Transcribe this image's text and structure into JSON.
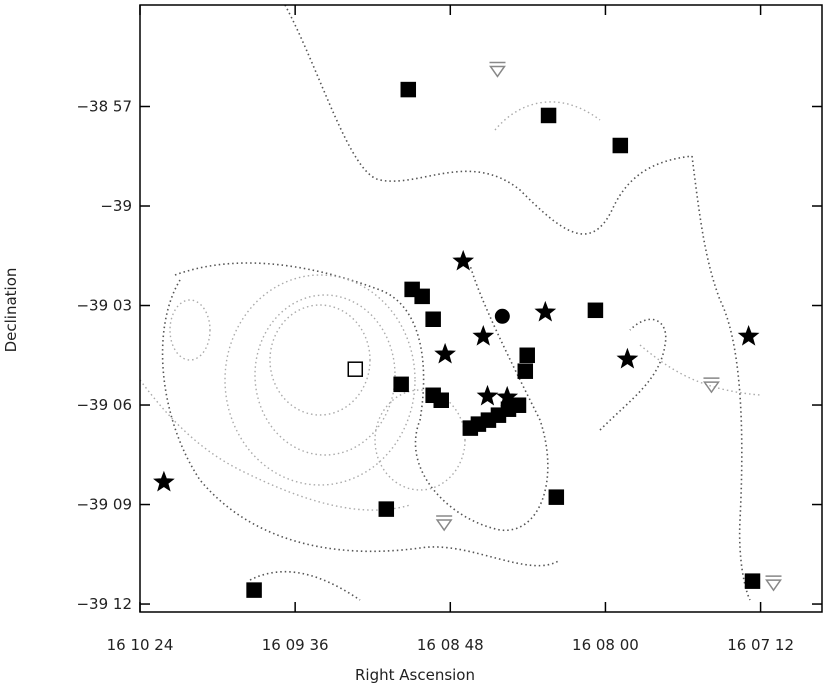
{
  "chart_data": {
    "type": "scatter",
    "x_label": "Right Ascension",
    "y_label": "Declination",
    "xlim": [
      624,
      413
    ],
    "ylim": [
      -39.204,
      -38.899
    ],
    "xticks": [
      {
        "value": 624,
        "label": "16 10 24"
      },
      {
        "value": 576,
        "label": "16 09 36"
      },
      {
        "value": 528,
        "label": "16 08 48"
      },
      {
        "value": 480,
        "label": "16 08 00"
      },
      {
        "value": 432,
        "label": "16 07 12"
      }
    ],
    "yticks": [
      {
        "value": -38.95,
        "label": "−38 57"
      },
      {
        "value": -39.0,
        "label": "−39"
      },
      {
        "value": -39.05,
        "label": "−39 03"
      },
      {
        "value": -39.1,
        "label": "−39 06"
      },
      {
        "value": -39.15,
        "label": "−39 09"
      },
      {
        "value": -39.2,
        "label": "−39 12"
      }
    ],
    "series": [
      {
        "marker": "square",
        "filled": true,
        "color": "#000000",
        "x": [
          541.0,
          497.6,
          475.4,
          539.8,
          536.7,
          533.3,
          483.1,
          504.2,
          504.8,
          543.2,
          533.3,
          530.8,
          495.2,
          547.8,
          588.7,
          434.5,
          521.8,
          519.3,
          516.2,
          513.1,
          510.0,
          506.9
        ],
        "y": [
          -38.9415,
          -38.9545,
          -38.9696,
          -39.0419,
          -39.0454,
          -39.0569,
          -39.0524,
          -39.075,
          -39.083,
          -39.0896,
          -39.0951,
          -39.0976,
          -39.1463,
          -39.1523,
          -39.193,
          -39.1885,
          -39.1116,
          -39.1096,
          -39.1076,
          -39.1051,
          -39.1021,
          -39.1001
        ]
      },
      {
        "marker": "square",
        "filled": false,
        "color": "#000000",
        "x": [
          557.4
        ],
        "y": [
          -39.082
        ]
      },
      {
        "marker": "star",
        "filled": true,
        "color": "#000000",
        "x": [
          524.0,
          498.6,
          517.8,
          529.6,
          473.2,
          435.7,
          516.5,
          510.4,
          616.6
        ],
        "y": [
          -39.0278,
          -39.0534,
          -39.0655,
          -39.0745,
          -39.077,
          -39.0655,
          -39.0956,
          -39.0961,
          -39.1388
        ]
      },
      {
        "marker": "circle",
        "filled": true,
        "color": "#000000",
        "x": [
          511.9
        ],
        "y": [
          -39.0554
        ]
      },
      {
        "marker": "triangle-down",
        "filled": false,
        "color": "#888888",
        "x": [
          513.4,
          447.2,
          428.0,
          529.9
        ],
        "y": [
          -38.9314,
          -39.09,
          -39.1895,
          -39.1593
        ]
      }
    ]
  }
}
